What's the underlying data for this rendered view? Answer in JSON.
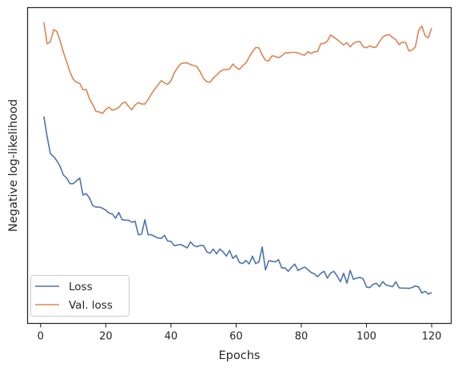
{
  "chart_data": {
    "type": "line",
    "title": "",
    "xlabel": "Epochs",
    "ylabel": "Negative log-likelihood",
    "xlim": [
      -4,
      126
    ],
    "ylim": [
      0,
      100
    ],
    "x_ticks": [
      0,
      20,
      40,
      60,
      80,
      100,
      120
    ],
    "y_ticks": [],
    "grid": false,
    "legend_position": "lower-left",
    "x": [
      1,
      2,
      3,
      4,
      5,
      6,
      7,
      8,
      9,
      10,
      11,
      12,
      13,
      14,
      15,
      16,
      17,
      18,
      19,
      20,
      21,
      22,
      23,
      24,
      25,
      26,
      27,
      28,
      29,
      30,
      31,
      32,
      33,
      34,
      35,
      36,
      37,
      38,
      39,
      40,
      41,
      42,
      43,
      44,
      45,
      46,
      47,
      48,
      49,
      50,
      51,
      52,
      53,
      54,
      55,
      56,
      57,
      58,
      59,
      60,
      61,
      62,
      63,
      64,
      65,
      66,
      67,
      68,
      69,
      70,
      71,
      72,
      73,
      74,
      75,
      76,
      77,
      78,
      79,
      80,
      81,
      82,
      83,
      84,
      85,
      86,
      87,
      88,
      89,
      90,
      91,
      92,
      93,
      94,
      95,
      96,
      97,
      98,
      99,
      100,
      101,
      102,
      103,
      104,
      105,
      106,
      107,
      108,
      109,
      110,
      111,
      112,
      113,
      114,
      115,
      116,
      117,
      118,
      119,
      120
    ],
    "series": [
      {
        "name": "Loss",
        "color": "#4c72b0",
        "values": [
          67,
          60,
          54,
          53,
          51.5,
          49.5,
          46.5,
          45.5,
          43.5,
          43.5,
          44.5,
          45.5,
          39.5,
          40,
          38.5,
          35.8,
          35.3,
          35.3,
          34.9,
          34.2,
          33.2,
          32.9,
          31.4,
          33.4,
          30.9,
          30.7,
          30.7,
          30,
          30.3,
          25.6,
          25.8,
          30.9,
          25.6,
          25.6,
          25,
          24.5,
          24.3,
          25.4,
          23.4,
          23.3,
          21.8,
          22,
          22.2,
          21.6,
          21,
          23.1,
          21.8,
          21.4,
          21.9,
          21.8,
          19.6,
          19.1,
          20.6,
          18.9,
          20.6,
          19.6,
          18.1,
          20.1,
          17.3,
          18.4,
          15.9,
          15.5,
          16.6,
          15.4,
          18.1,
          15.5,
          16.1,
          21.3,
          13.3,
          16.5,
          16.3,
          16.1,
          16.9,
          14,
          14,
          12.8,
          14.2,
          15.3,
          13.1,
          13.7,
          14.3,
          13.4,
          12.4,
          11.9,
          10.9,
          12.1,
          12.8,
          10.4,
          12.2,
          12.8,
          11.1,
          9.2,
          12.1,
          8.6,
          13.1,
          10,
          10.4,
          10.7,
          10.1,
          7.3,
          7.1,
          8.2,
          8.6,
          7.4,
          9.2,
          8,
          7.7,
          7.4,
          9.1,
          7,
          6.9,
          6.9,
          6.8,
          7.1,
          7.7,
          7.3,
          5.2,
          5.8,
          4.8,
          5.4
        ]
      },
      {
        "name": "Val. loss",
        "color": "#dd8452",
        "values": [
          100,
          92.5,
          93.2,
          97.5,
          96.8,
          93.5,
          89.5,
          86.2,
          82.7,
          80.1,
          79,
          78.6,
          76.4,
          76.5,
          73.2,
          71.2,
          68.8,
          68.6,
          68.1,
          69.5,
          70.3,
          69.2,
          69.6,
          70.2,
          71.6,
          72.1,
          70.6,
          69.4,
          71.1,
          71.9,
          71.4,
          71.4,
          73,
          74.9,
          76.6,
          78,
          79.6,
          78.8,
          78.3,
          79.5,
          82.3,
          84.1,
          85.5,
          85.8,
          85.8,
          85.2,
          84.9,
          84.5,
          82.6,
          80.3,
          79.2,
          79,
          80.5,
          81.5,
          82.7,
          83.4,
          83.5,
          83.7,
          85.4,
          84.2,
          83.5,
          84.8,
          85.8,
          87.8,
          89.7,
          91.2,
          91.1,
          88.6,
          86.7,
          86.5,
          88.3,
          88.1,
          87.6,
          88.3,
          89.3,
          89.3,
          89.5,
          89.5,
          89.3,
          88.8,
          88.5,
          89.7,
          89.1,
          89.7,
          89.8,
          92.6,
          92.6,
          93.5,
          95.6,
          94.8,
          94,
          93,
          92.1,
          92.9,
          91.4,
          92.7,
          93.2,
          93.3,
          91.5,
          91.1,
          91.8,
          91.2,
          91.4,
          93.3,
          94.9,
          95.5,
          95.7,
          94.7,
          94,
          92.2,
          93.1,
          93,
          90,
          90.3,
          91.4,
          97.2,
          98.7,
          95.3,
          94.6,
          98
        ]
      }
    ]
  }
}
